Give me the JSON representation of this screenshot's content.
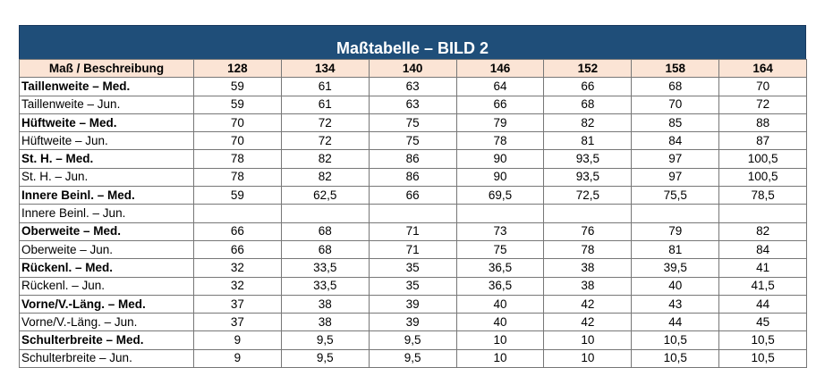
{
  "title": "Maßtabelle – BILD 2",
  "header": [
    "Maß / Beschreibung",
    "128",
    "134",
    "140",
    "146",
    "152",
    "158",
    "164"
  ],
  "rows": [
    {
      "label": "Taillenweite – Med.",
      "bold": true,
      "values": [
        "59",
        "61",
        "63",
        "64",
        "66",
        "68",
        "70"
      ]
    },
    {
      "label": "Taillenweite – Jun.",
      "bold": false,
      "values": [
        "59",
        "61",
        "63",
        "66",
        "68",
        "70",
        "72"
      ]
    },
    {
      "label": "Hüftweite – Med.",
      "bold": true,
      "values": [
        "70",
        "72",
        "75",
        "79",
        "82",
        "85",
        "88"
      ]
    },
    {
      "label": "Hüftweite – Jun.",
      "bold": false,
      "values": [
        "70",
        "72",
        "75",
        "78",
        "81",
        "84",
        "87"
      ]
    },
    {
      "label": "St. H. – Med.",
      "bold": true,
      "values": [
        "78",
        "82",
        "86",
        "90",
        "93,5",
        "97",
        "100,5"
      ]
    },
    {
      "label": "St. H. – Jun.",
      "bold": false,
      "values": [
        "78",
        "82",
        "86",
        "90",
        "93,5",
        "97",
        "100,5"
      ]
    },
    {
      "label": "Innere Beinl. – Med.",
      "bold": true,
      "values": [
        "59",
        "62,5",
        "66",
        "69,5",
        "72,5",
        "75,5",
        "78,5"
      ]
    },
    {
      "label": "Innere Beinl. – Jun.",
      "bold": false,
      "values": [
        "",
        "",
        "",
        "",
        "",
        "",
        ""
      ]
    },
    {
      "label": "Oberweite – Med.",
      "bold": true,
      "values": [
        "66",
        "68",
        "71",
        "73",
        "76",
        "79",
        "82"
      ]
    },
    {
      "label": "Oberweite – Jun.",
      "bold": false,
      "values": [
        "66",
        "68",
        "71",
        "75",
        "78",
        "81",
        "84"
      ]
    },
    {
      "label": "Rückenl. – Med.",
      "bold": true,
      "values": [
        "32",
        "33,5",
        "35",
        "36,5",
        "38",
        "39,5",
        "41"
      ]
    },
    {
      "label": "Rückenl. – Jun.",
      "bold": false,
      "values": [
        "32",
        "33,5",
        "35",
        "36,5",
        "38",
        "40",
        "41,5"
      ]
    },
    {
      "label": "Vorne/V.-Läng. – Med.",
      "bold": true,
      "values": [
        "37",
        "38",
        "39",
        "40",
        "42",
        "43",
        "44"
      ]
    },
    {
      "label": "Vorne/V.-Läng. – Jun.",
      "bold": false,
      "values": [
        "37",
        "38",
        "39",
        "40",
        "42",
        "44",
        "45"
      ]
    },
    {
      "label": "Schulterbreite – Med.",
      "bold": true,
      "values": [
        "9",
        "9,5",
        "9,5",
        "10",
        "10",
        "10,5",
        "10,5"
      ]
    },
    {
      "label": "Schulterbreite – Jun.",
      "bold": false,
      "values": [
        "9",
        "9,5",
        "9,5",
        "10",
        "10",
        "10,5",
        "10,5"
      ]
    }
  ]
}
